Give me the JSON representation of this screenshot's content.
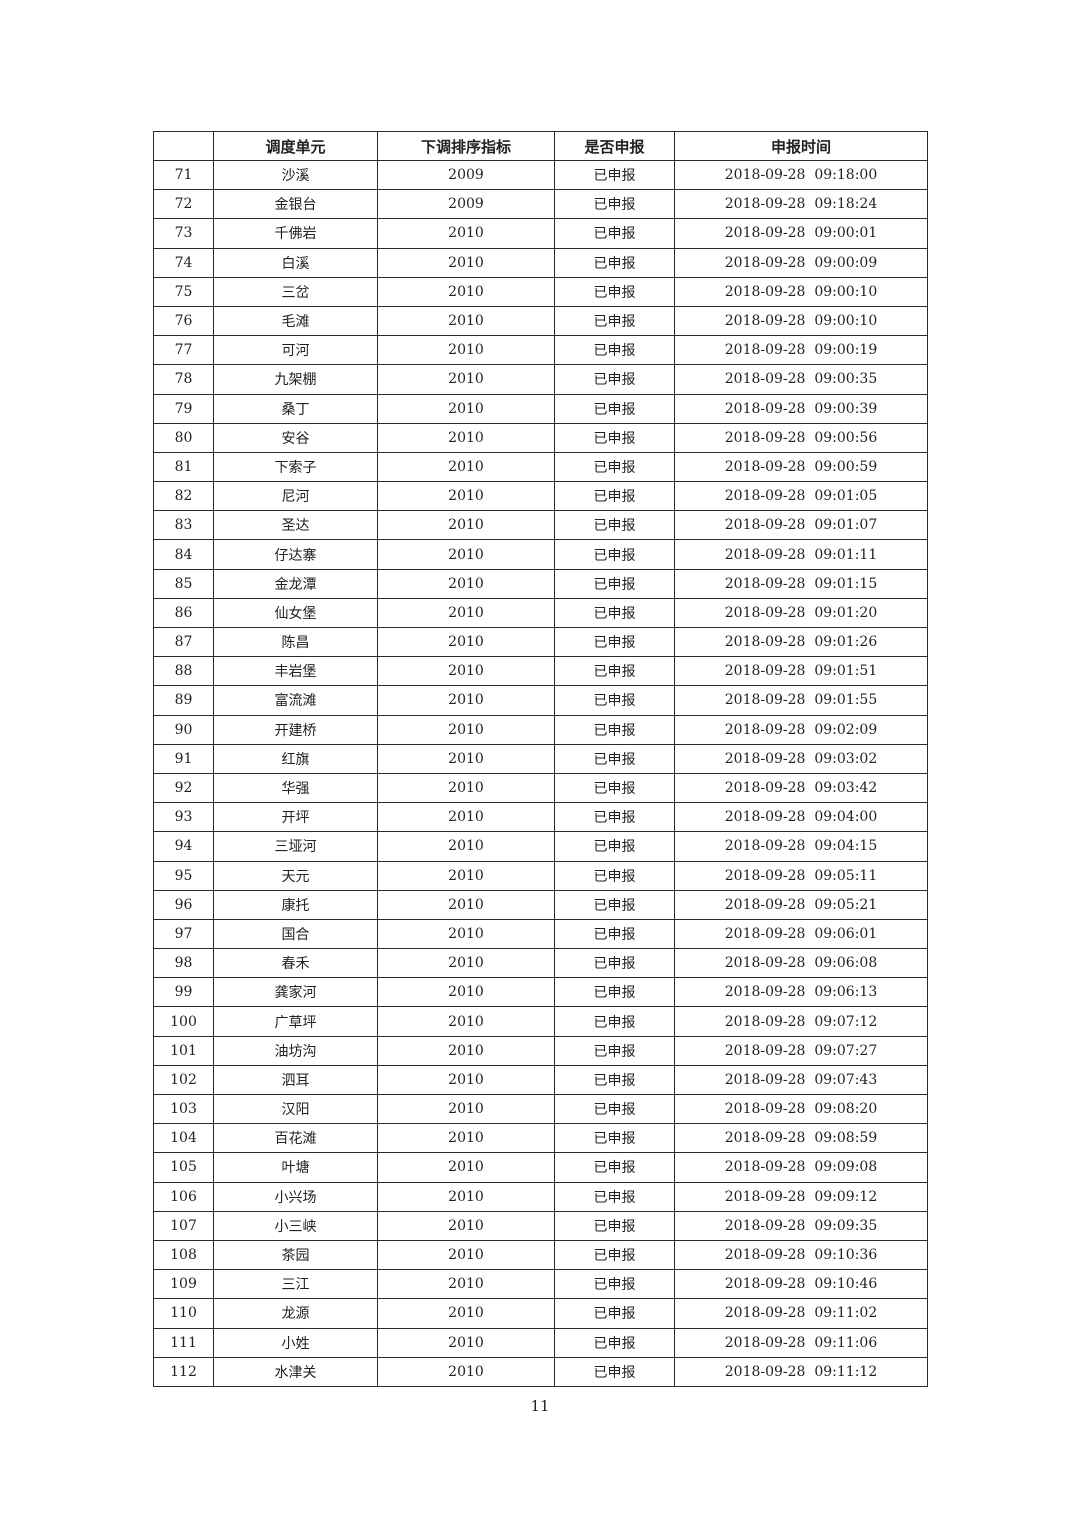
{
  "table": {
    "headers": [
      "",
      "调度单元",
      "下调排序指标",
      "是否申报",
      "申报时间"
    ],
    "rows": [
      [
        "71",
        "沙溪",
        "2009",
        "已申报",
        "2018-09-28  09:18:00"
      ],
      [
        "72",
        "金银台",
        "2009",
        "已申报",
        "2018-09-28  09:18:24"
      ],
      [
        "73",
        "千佛岩",
        "2010",
        "已申报",
        "2018-09-28  09:00:01"
      ],
      [
        "74",
        "白溪",
        "2010",
        "已申报",
        "2018-09-28  09:00:09"
      ],
      [
        "75",
        "三岔",
        "2010",
        "已申报",
        "2018-09-28  09:00:10"
      ],
      [
        "76",
        "毛滩",
        "2010",
        "已申报",
        "2018-09-28  09:00:10"
      ],
      [
        "77",
        "可河",
        "2010",
        "已申报",
        "2018-09-28  09:00:19"
      ],
      [
        "78",
        "九架棚",
        "2010",
        "已申报",
        "2018-09-28  09:00:35"
      ],
      [
        "79",
        "桑丁",
        "2010",
        "已申报",
        "2018-09-28  09:00:39"
      ],
      [
        "80",
        "安谷",
        "2010",
        "已申报",
        "2018-09-28  09:00:56"
      ],
      [
        "81",
        "下索子",
        "2010",
        "已申报",
        "2018-09-28  09:00:59"
      ],
      [
        "82",
        "尼河",
        "2010",
        "已申报",
        "2018-09-28  09:01:05"
      ],
      [
        "83",
        "圣达",
        "2010",
        "已申报",
        "2018-09-28  09:01:07"
      ],
      [
        "84",
        "仔达寨",
        "2010",
        "已申报",
        "2018-09-28  09:01:11"
      ],
      [
        "85",
        "金龙潭",
        "2010",
        "已申报",
        "2018-09-28  09:01:15"
      ],
      [
        "86",
        "仙女堡",
        "2010",
        "已申报",
        "2018-09-28  09:01:20"
      ],
      [
        "87",
        "陈昌",
        "2010",
        "已申报",
        "2018-09-28  09:01:26"
      ],
      [
        "88",
        "丰岩堡",
        "2010",
        "已申报",
        "2018-09-28  09:01:51"
      ],
      [
        "89",
        "富流滩",
        "2010",
        "已申报",
        "2018-09-28  09:01:55"
      ],
      [
        "90",
        "开建桥",
        "2010",
        "已申报",
        "2018-09-28  09:02:09"
      ],
      [
        "91",
        "红旗",
        "2010",
        "已申报",
        "2018-09-28  09:03:02"
      ],
      [
        "92",
        "华强",
        "2010",
        "已申报",
        "2018-09-28  09:03:42"
      ],
      [
        "93",
        "开坪",
        "2010",
        "已申报",
        "2018-09-28  09:04:00"
      ],
      [
        "94",
        "三垭河",
        "2010",
        "已申报",
        "2018-09-28  09:04:15"
      ],
      [
        "95",
        "天元",
        "2010",
        "已申报",
        "2018-09-28  09:05:11"
      ],
      [
        "96",
        "康托",
        "2010",
        "已申报",
        "2018-09-28  09:05:21"
      ],
      [
        "97",
        "国合",
        "2010",
        "已申报",
        "2018-09-28  09:06:01"
      ],
      [
        "98",
        "春禾",
        "2010",
        "已申报",
        "2018-09-28  09:06:08"
      ],
      [
        "99",
        "龚家河",
        "2010",
        "已申报",
        "2018-09-28  09:06:13"
      ],
      [
        "100",
        "广草坪",
        "2010",
        "已申报",
        "2018-09-28  09:07:12"
      ],
      [
        "101",
        "油坊沟",
        "2010",
        "已申报",
        "2018-09-28  09:07:27"
      ],
      [
        "102",
        "泗耳",
        "2010",
        "已申报",
        "2018-09-28  09:07:43"
      ],
      [
        "103",
        "汉阳",
        "2010",
        "已申报",
        "2018-09-28  09:08:20"
      ],
      [
        "104",
        "百花滩",
        "2010",
        "已申报",
        "2018-09-28  09:08:59"
      ],
      [
        "105",
        "叶塘",
        "2010",
        "已申报",
        "2018-09-28  09:09:08"
      ],
      [
        "106",
        "小兴场",
        "2010",
        "已申报",
        "2018-09-28  09:09:12"
      ],
      [
        "107",
        "小三峡",
        "2010",
        "已申报",
        "2018-09-28  09:09:35"
      ],
      [
        "108",
        "茶园",
        "2010",
        "已申报",
        "2018-09-28  09:10:36"
      ],
      [
        "109",
        "三江",
        "2010",
        "已申报",
        "2018-09-28  09:10:46"
      ],
      [
        "110",
        "龙源",
        "2010",
        "已申报",
        "2018-09-28  09:11:02"
      ],
      [
        "111",
        "小姓",
        "2010",
        "已申报",
        "2018-09-28  09:11:06"
      ],
      [
        "112",
        "水津关",
        "2010",
        "已申报",
        "2018-09-28  09:11:12"
      ]
    ]
  },
  "page_number": "11"
}
